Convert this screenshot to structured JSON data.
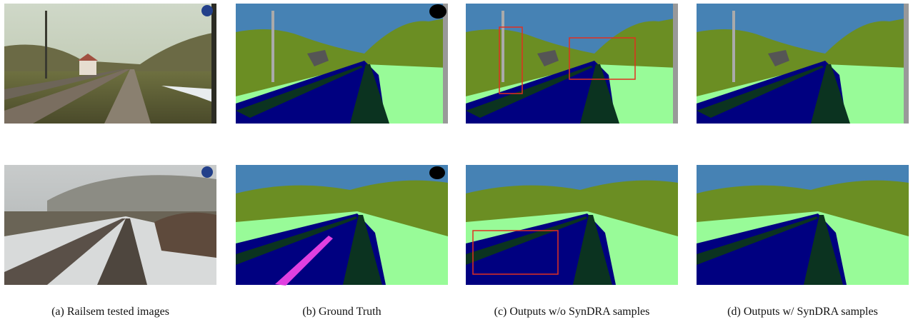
{
  "captions": [
    "(a) Railsem tested images",
    "(b) Ground Truth",
    "(c) Outputs w/o SynDRA samples",
    "(d) Outputs w/ SynDRA samples"
  ]
}
